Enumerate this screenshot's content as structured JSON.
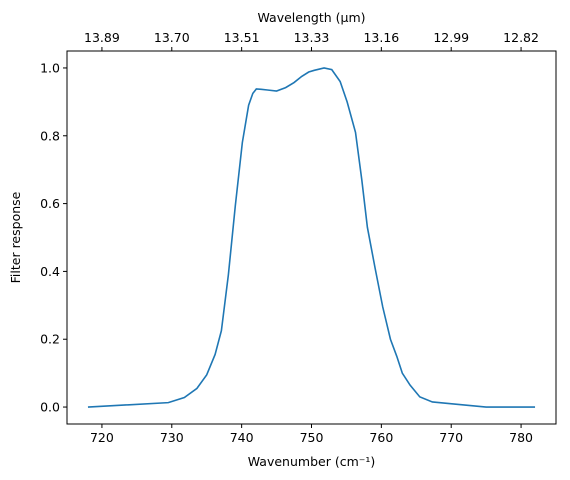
{
  "chart_data": {
    "type": "line",
    "xlabel": "Wavenumber (cm⁻¹)",
    "ylabel": "Filter response",
    "top_xlabel": "Wavelength (μm)",
    "xlim": [
      715,
      785
    ],
    "ylim": [
      -0.05,
      1.05
    ],
    "x_ticks": [
      720,
      730,
      740,
      750,
      760,
      770,
      780
    ],
    "y_ticks": [
      0.0,
      0.2,
      0.4,
      0.6,
      0.8,
      1.0
    ],
    "y_tick_labels": [
      "0.0",
      "0.2",
      "0.4",
      "0.6",
      "0.8",
      "1.0"
    ],
    "top_ticks": [
      {
        "at": 720,
        "label": "13.89"
      },
      {
        "at": 730,
        "label": "13.70"
      },
      {
        "at": 740,
        "label": "13.51"
      },
      {
        "at": 750,
        "label": "13.33"
      },
      {
        "at": 760,
        "label": "13.16"
      },
      {
        "at": 770,
        "label": "12.99"
      },
      {
        "at": 780,
        "label": "12.82"
      }
    ],
    "grid": false,
    "line_color": "#1f77b4",
    "series": [
      {
        "x": [
          718.0,
          729.5,
          731.8,
          733.6,
          735.0,
          736.2,
          737.1,
          738.1,
          739.1,
          740.1,
          741.0,
          741.6,
          742.1,
          742.8,
          743.7,
          745.0,
          746.3,
          747.5,
          748.6,
          749.6,
          750.4,
          751.8,
          752.9,
          754.1,
          755.1,
          756.3,
          757.2,
          758.0,
          759.1,
          760.2,
          761.3,
          762.2,
          763.0,
          764.1,
          765.5,
          767.3,
          769.9,
          775.0,
          782.0
        ],
        "y": [
          0.0,
          0.013,
          0.028,
          0.055,
          0.095,
          0.155,
          0.225,
          0.39,
          0.595,
          0.78,
          0.89,
          0.925,
          0.938,
          0.937,
          0.935,
          0.932,
          0.942,
          0.957,
          0.975,
          0.988,
          0.993,
          1.0,
          0.995,
          0.96,
          0.9,
          0.81,
          0.67,
          0.53,
          0.41,
          0.295,
          0.2,
          0.15,
          0.1,
          0.065,
          0.03,
          0.015,
          0.01,
          0.0,
          0.0
        ]
      }
    ]
  }
}
